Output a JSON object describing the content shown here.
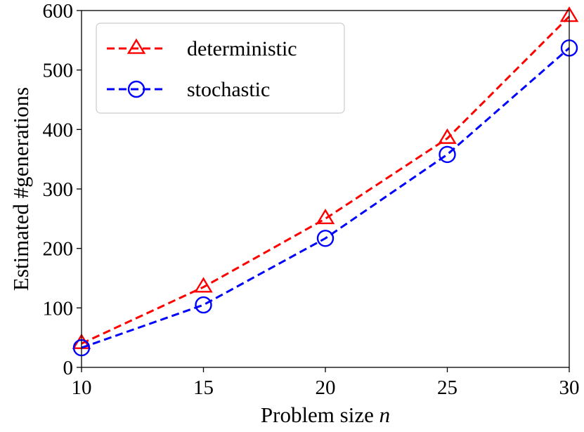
{
  "chart_data": {
    "type": "line",
    "title": "",
    "xlabel": "Problem size",
    "xlabel_var": "n",
    "ylabel": "Estimated #generations",
    "x": [
      10,
      15,
      20,
      25,
      30
    ],
    "xlim": [
      10,
      30
    ],
    "ylim": [
      0,
      600
    ],
    "xticks": [
      10,
      15,
      20,
      25,
      30
    ],
    "yticks": [
      0,
      100,
      200,
      300,
      400,
      500,
      600
    ],
    "grid": false,
    "legend_position": "top-left",
    "series": [
      {
        "name": "deterministic",
        "values": [
          40,
          135,
          250,
          385,
          590
        ],
        "color": "#ff0000",
        "marker": "triangle",
        "line_style": "dashed"
      },
      {
        "name": "stochastic",
        "values": [
          33,
          105,
          217,
          358,
          537
        ],
        "color": "#0000ff",
        "marker": "circle",
        "line_style": "dashed"
      }
    ]
  }
}
